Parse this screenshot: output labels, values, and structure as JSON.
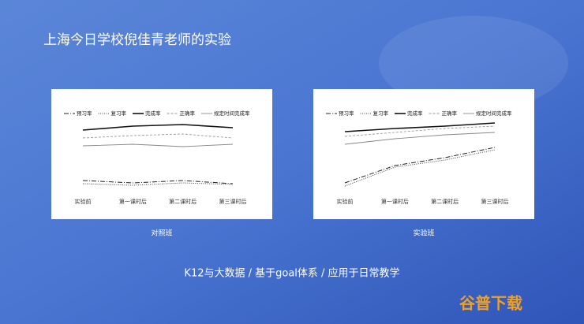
{
  "title": "上海今日学校倪佳青老师的实验",
  "chart_data": [
    {
      "type": "line",
      "title": "对照班",
      "categories": [
        "实验前",
        "第一课时后",
        "第二课时后",
        "第三课时后"
      ],
      "ylim": [
        0,
        100
      ],
      "series": [
        {
          "name": "预习率",
          "color": "#222222",
          "values": [
            21,
            18,
            21,
            17
          ]
        },
        {
          "name": "复习率",
          "color": "#444444",
          "values": [
            17,
            15,
            18,
            16
          ]
        },
        {
          "name": "完成率",
          "color": "#111111",
          "values": [
            85,
            90,
            92,
            88
          ]
        },
        {
          "name": "正确率",
          "color": "#999999",
          "values": [
            75,
            78,
            80,
            75
          ]
        },
        {
          "name": "规定时间完成率",
          "color": "#888888",
          "values": [
            65,
            67,
            64,
            67
          ]
        }
      ]
    },
    {
      "type": "line",
      "title": "实验班",
      "categories": [
        "实验前",
        "第一课时后",
        "第二课时后",
        "第三课时后"
      ],
      "ylim": [
        0,
        100
      ],
      "series": [
        {
          "name": "预习率",
          "color": "#222222",
          "values": [
            18,
            40,
            50,
            63
          ]
        },
        {
          "name": "复习率",
          "color": "#444444",
          "values": [
            14,
            38,
            47,
            60
          ]
        },
        {
          "name": "完成率",
          "color": "#111111",
          "values": [
            83,
            87,
            90,
            94
          ]
        },
        {
          "name": "正确率",
          "color": "#999999",
          "values": [
            77,
            82,
            87,
            90
          ]
        },
        {
          "name": "规定时间完成率",
          "color": "#888888",
          "values": [
            67,
            74,
            79,
            82
          ]
        }
      ]
    }
  ],
  "footer": "K12与大数据 / 基于goal体系 / 应用于日常教学",
  "watermark": "谷普下载"
}
